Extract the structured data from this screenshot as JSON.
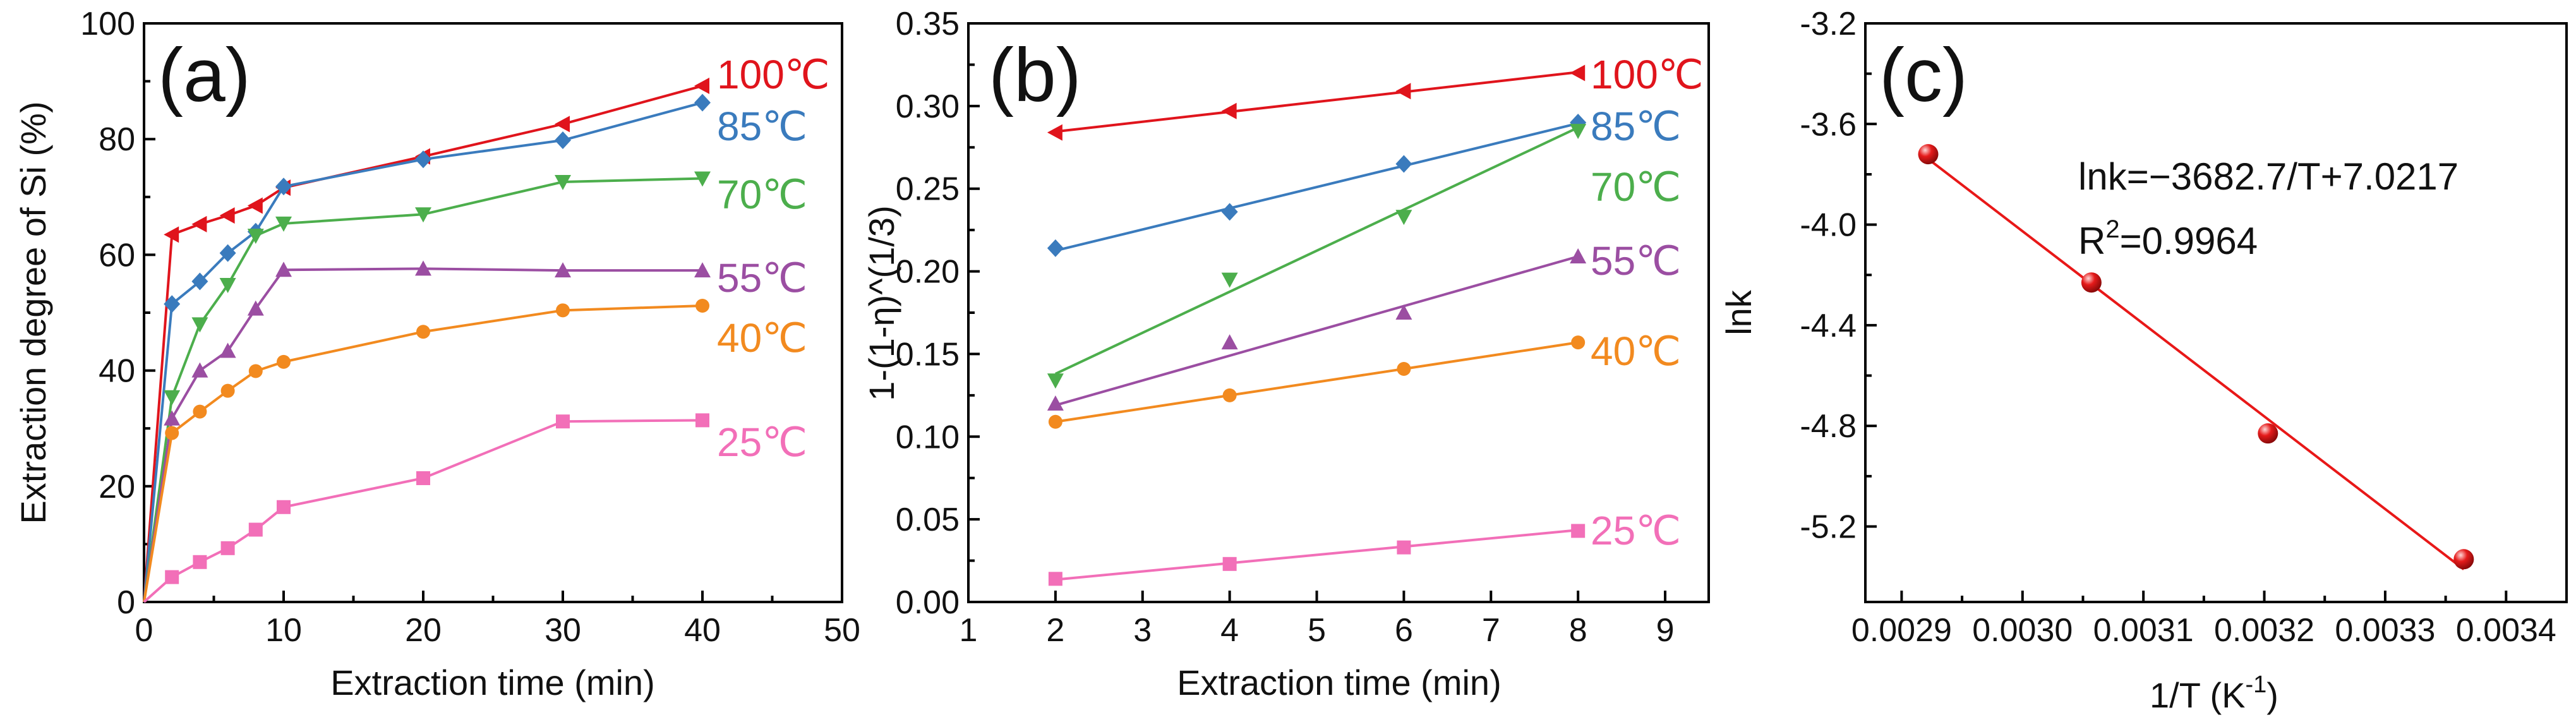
{
  "colors": {
    "c100": "#e0141c",
    "c85": "#3a7bbd",
    "c70": "#4cae4c",
    "c55": "#9b4ea2",
    "c40": "#f28a1f",
    "c25": "#f26fb8",
    "fit": "#e81818",
    "point": "#e51b1b"
  },
  "chart_data": [
    {
      "type": "line",
      "panel_label": "(a)",
      "xlabel": "Extraction time (min)",
      "ylabel": "Extraction degree of Si (%)",
      "xlim": [
        0,
        50
      ],
      "ylim": [
        0,
        100
      ],
      "xticks": [
        "0",
        "10",
        "20",
        "30",
        "40",
        "50"
      ],
      "yticks": [
        "0",
        "20",
        "40",
        "60",
        "80",
        "100"
      ],
      "x": [
        0,
        2,
        4,
        6,
        8,
        10,
        20,
        30,
        40
      ],
      "series": [
        {
          "name": "100℃",
          "color": "c100",
          "marker": "triangle-left",
          "values": [
            0,
            63.5,
            65.3,
            66.8,
            68.5,
            71.6,
            77.0,
            82.6,
            89.2
          ]
        },
        {
          "name": "85℃",
          "color": "c85",
          "marker": "diamond",
          "values": [
            0,
            51.5,
            55.4,
            60.3,
            64.0,
            71.8,
            76.5,
            79.8,
            86.3
          ]
        },
        {
          "name": "70℃",
          "color": "c70",
          "marker": "triangle-down",
          "values": [
            0,
            35.4,
            48.0,
            54.8,
            63.3,
            65.4,
            67.0,
            72.6,
            73.2
          ]
        },
        {
          "name": "55℃",
          "color": "c55",
          "marker": "triangle-up",
          "values": [
            0,
            31.7,
            40.0,
            43.4,
            50.7,
            57.4,
            57.6,
            57.3,
            57.3
          ]
        },
        {
          "name": "40℃",
          "color": "c40",
          "marker": "circle",
          "values": [
            0,
            29.2,
            32.9,
            36.5,
            39.9,
            41.5,
            46.7,
            50.4,
            51.2
          ]
        },
        {
          "name": "25℃",
          "color": "c25",
          "marker": "square",
          "values": [
            0,
            4.3,
            6.9,
            9.3,
            12.5,
            16.4,
            21.4,
            31.2,
            31.4
          ]
        }
      ]
    },
    {
      "type": "scatter",
      "panel_label": "(b)",
      "xlabel": "Extraction time (min)",
      "ylabel": "1-(1-η)^(1/3)",
      "xlim": [
        1,
        9.5
      ],
      "ylim": [
        0,
        0.35
      ],
      "xticks": [
        "1",
        "2",
        "3",
        "4",
        "5",
        "6",
        "7",
        "8",
        "9"
      ],
      "yticks": [
        "0.00",
        "0.05",
        "0.10",
        "0.15",
        "0.20",
        "0.25",
        "0.30",
        "0.35"
      ],
      "x": [
        2,
        4,
        6,
        8
      ],
      "series": [
        {
          "name": "100℃",
          "color": "c100",
          "marker": "triangle-left",
          "values": [
            0.284,
            0.297,
            0.309,
            0.32
          ],
          "fit": [
            0.2845,
            0.3205
          ]
        },
        {
          "name": "85℃",
          "color": "c85",
          "marker": "diamond",
          "values": [
            0.214,
            0.236,
            0.265,
            0.29
          ],
          "fit": [
            0.2125,
            0.2895
          ]
        },
        {
          "name": "70℃",
          "color": "c70",
          "marker": "triangle-down",
          "values": [
            0.134,
            0.195,
            0.233,
            0.285
          ],
          "fit": [
            0.138,
            0.287
          ]
        },
        {
          "name": "55℃",
          "color": "c55",
          "marker": "triangle-up",
          "values": [
            0.12,
            0.157,
            0.175,
            0.209
          ],
          "fit": [
            0.119,
            0.209
          ]
        },
        {
          "name": "40℃",
          "color": "c40",
          "marker": "circle",
          "values": [
            0.109,
            0.125,
            0.141,
            0.157
          ],
          "fit": [
            0.109,
            0.157
          ]
        },
        {
          "name": "25℃",
          "color": "c25",
          "marker": "square",
          "values": [
            0.014,
            0.023,
            0.033,
            0.043
          ],
          "fit": [
            0.0135,
            0.0435
          ]
        }
      ]
    },
    {
      "type": "scatter",
      "panel_label": "(c)",
      "xlabel_main": "1/T (K",
      "xlabel_sup": "-1",
      "xlabel_end": ")",
      "ylabel": "lnk",
      "xlim": [
        0.00287,
        0.00345
      ],
      "ylim": [
        -5.5,
        -3.2
      ],
      "xticks": [
        "0.0029",
        "0.0030",
        "0.0031",
        "0.0032",
        "0.0033",
        "0.0034"
      ],
      "yticks": [
        "-5.2",
        "-4.8",
        "-4.4",
        "-4.0",
        "-3.6",
        "-3.2"
      ],
      "points": [
        {
          "x": 0.002922,
          "y": -3.72
        },
        {
          "x": 0.003057,
          "y": -4.23
        },
        {
          "x": 0.003203,
          "y": -4.83
        },
        {
          "x": 0.003365,
          "y": -5.33
        }
      ],
      "fit_x": [
        0.002922,
        0.003365
      ],
      "fit_y": [
        -3.739,
        -5.37
      ],
      "equation": "lnk=−3682.7/T+7.0217",
      "r2_label_main": "R",
      "r2_sup": "2",
      "r2_value": "=0.9964"
    }
  ]
}
